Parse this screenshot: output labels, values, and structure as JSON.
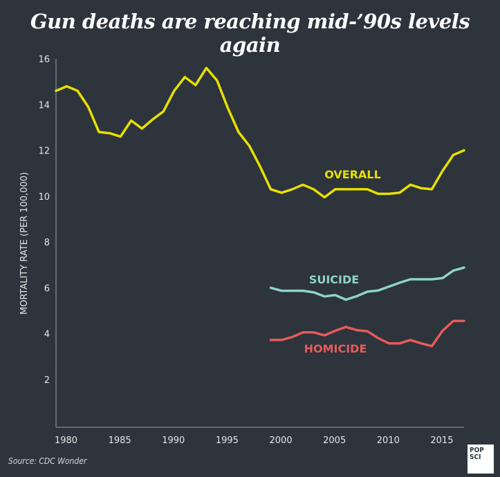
{
  "title": "Gun deaths are reaching mid-’90s levels again",
  "source": "Source: CDC Wonder",
  "logo": {
    "line1": "POP",
    "line2": "SCI"
  },
  "chart_data": {
    "type": "line",
    "title": "Gun deaths are reaching mid-’90s levels again",
    "ylabel": "MORTALITY RATE (PER 100,000)",
    "xlabel": "",
    "ylim": [
      0,
      16
    ],
    "xlim": [
      1979,
      2017
    ],
    "yticks": [
      2,
      4,
      6,
      8,
      10,
      12,
      14,
      16
    ],
    "xticks": [
      1980,
      1985,
      1990,
      1995,
      2000,
      2005,
      2010,
      2015
    ],
    "grid": false,
    "series": [
      {
        "name": "OVERALL",
        "color": "#e8e000",
        "x": [
          1979,
          1980,
          1981,
          1982,
          1983,
          1984,
          1985,
          1986,
          1987,
          1988,
          1989,
          1990,
          1991,
          1992,
          1993,
          1994,
          1995,
          1996,
          1997,
          1998,
          1999,
          2000,
          2001,
          2002,
          2003,
          2004,
          2005,
          2006,
          2007,
          2008,
          2009,
          2010,
          2011,
          2012,
          2013,
          2014,
          2015,
          2016,
          2017
        ],
        "values": [
          14.6,
          14.8,
          14.6,
          13.9,
          12.8,
          12.75,
          12.6,
          13.3,
          12.95,
          13.35,
          13.7,
          14.6,
          15.2,
          14.85,
          15.6,
          15.05,
          13.85,
          12.8,
          12.2,
          11.3,
          10.3,
          10.15,
          10.3,
          10.5,
          10.3,
          9.95,
          10.3,
          10.3,
          10.3,
          10.3,
          10.1,
          10.1,
          10.15,
          10.5,
          10.35,
          10.3,
          11.1,
          11.8,
          12.0
        ]
      },
      {
        "name": "SUICIDE",
        "color": "#8fd3cc",
        "x": [
          1999,
          2000,
          2001,
          2002,
          2003,
          2004,
          2005,
          2006,
          2007,
          2008,
          2009,
          2010,
          2011,
          2012,
          2013,
          2014,
          2015,
          2016,
          2017
        ],
        "values": [
          6.0,
          5.87,
          5.87,
          5.87,
          5.8,
          5.62,
          5.68,
          5.48,
          5.63,
          5.83,
          5.88,
          6.05,
          6.22,
          6.37,
          6.37,
          6.37,
          6.42,
          6.75,
          6.88
        ]
      },
      {
        "name": "HOMICIDE",
        "color": "#e85a5a",
        "x": [
          1999,
          2000,
          2001,
          2002,
          2003,
          2004,
          2005,
          2006,
          2007,
          2008,
          2009,
          2010,
          2011,
          2012,
          2013,
          2014,
          2015,
          2016,
          2017
        ],
        "values": [
          3.72,
          3.72,
          3.85,
          4.05,
          4.05,
          3.92,
          4.12,
          4.29,
          4.15,
          4.1,
          3.8,
          3.57,
          3.57,
          3.72,
          3.57,
          3.45,
          4.12,
          4.55,
          4.55
        ]
      }
    ]
  }
}
